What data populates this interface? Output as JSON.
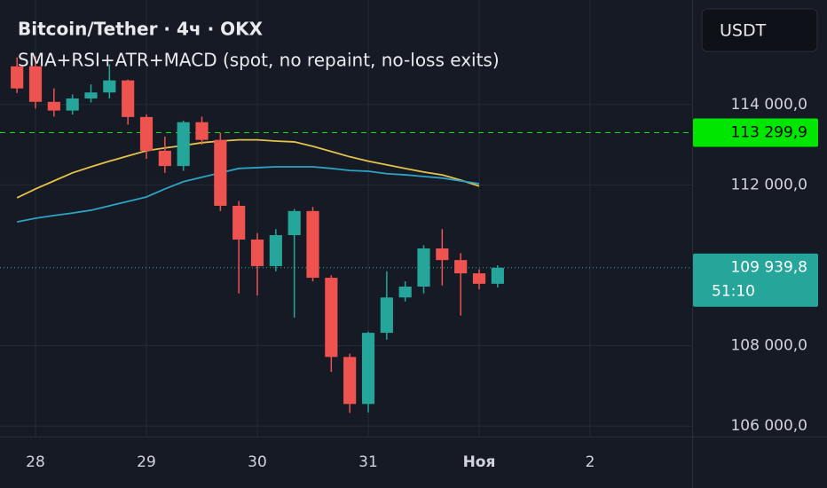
{
  "chart_data": {
    "type": "candlestick",
    "title": "Bitcoin/Tether · 4ч · OKX",
    "subtitle": "SMA+RSI+ATR+MACD (spot, no repaint, no-loss exits)",
    "currency": "USDT",
    "up_color": "#26a69a",
    "down_color": "#ef5350",
    "grid": true,
    "x": [
      0,
      1,
      2,
      3,
      4,
      5,
      6,
      7,
      8,
      9,
      10,
      11,
      12,
      13,
      14,
      15,
      16,
      17,
      18,
      19,
      20,
      21,
      22,
      23,
      24,
      25,
      26
    ],
    "open": [
      114950,
      114950,
      114066,
      113850,
      114150,
      114300,
      114600,
      113690,
      112850,
      112470,
      113560,
      113120,
      111480,
      110640,
      109980,
      110750,
      111350,
      109690,
      107720,
      106550,
      108320,
      109200,
      109470,
      110420,
      110130,
      109800,
      109540
    ],
    "high": [
      115171,
      115200,
      114400,
      114250,
      114500,
      115000,
      114620,
      113750,
      113200,
      113600,
      113700,
      113300,
      111600,
      110800,
      110900,
      111400,
      111450,
      109750,
      107800,
      108350,
      109850,
      109600,
      110500,
      110900,
      110300,
      109900,
      110000
    ],
    "low": [
      114287,
      113900,
      113700,
      113750,
      114050,
      114150,
      113500,
      112650,
      112300,
      112350,
      113000,
      111350,
      109300,
      109250,
      109850,
      108700,
      109600,
      107350,
      106330,
      106340,
      108150,
      109100,
      109300,
      109500,
      108750,
      109400,
      109450
    ],
    "close": [
      114400,
      114066,
      113850,
      114150,
      114300,
      114600,
      113690,
      112850,
      112470,
      113560,
      113120,
      111480,
      110640,
      109980,
      110750,
      111350,
      109690,
      107720,
      106550,
      108320,
      109200,
      109470,
      110420,
      110130,
      109800,
      109540,
      109940
    ],
    "overlays": [
      {
        "color": "#e5c34a",
        "x": [
          0,
          1,
          2,
          3,
          4,
          5,
          6,
          7,
          8,
          9,
          10,
          11,
          12,
          13,
          14,
          15,
          16,
          17,
          18,
          19,
          20,
          21,
          22,
          23,
          24,
          25
        ],
        "values": [
          111680,
          111900,
          112100,
          112300,
          112450,
          112590,
          112720,
          112850,
          112920,
          112980,
          113050,
          113090,
          113120,
          113120,
          113090,
          113070,
          112960,
          112830,
          112700,
          112590,
          112500,
          112410,
          112320,
          112250,
          112120,
          111970
        ]
      },
      {
        "color": "#2ea3c4",
        "x": [
          0,
          1,
          2,
          3,
          4,
          5,
          6,
          7,
          8,
          9,
          10,
          11,
          12,
          13,
          14,
          15,
          16,
          17,
          18,
          19,
          20,
          21,
          22,
          23,
          24,
          25
        ],
        "values": [
          111080,
          111170,
          111240,
          111300,
          111370,
          111480,
          111590,
          111700,
          111900,
          112080,
          112190,
          112300,
          112410,
          112430,
          112450,
          112450,
          112450,
          112410,
          112360,
          112340,
          112280,
          112250,
          112210,
          112170,
          112100,
          112030
        ]
      }
    ],
    "price_lines": [
      {
        "value": 113299.9,
        "label": "113 299,9",
        "color": "#00e600",
        "style": "dashed"
      },
      {
        "value": 109939.8,
        "label": "109 939,8",
        "countdown": "51:10",
        "color": "#26a69a",
        "style": "dotted"
      }
    ],
    "xlim": [
      -0.92,
      36.52
    ],
    "ylim": [
      105740,
      116600
    ],
    "xticks": [
      {
        "value": 1,
        "label": "28"
      },
      {
        "value": 7,
        "label": "29"
      },
      {
        "value": 13,
        "label": "30"
      },
      {
        "value": 19,
        "label": "31"
      },
      {
        "value": 25,
        "label": "Ноя"
      },
      {
        "value": 31,
        "label": "2"
      }
    ],
    "yticks": [
      {
        "value": 106000,
        "label": "106 000,0"
      },
      {
        "value": 108000,
        "label": "108 000,0"
      },
      {
        "value": 112000,
        "label": "112 000,0"
      },
      {
        "value": 114000,
        "label": "114 000,0"
      }
    ]
  }
}
